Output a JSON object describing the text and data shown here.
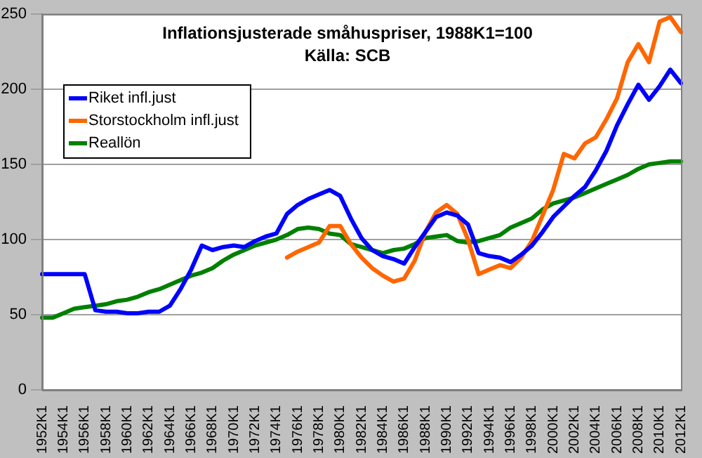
{
  "chart_data": {
    "type": "line",
    "title": "Inflationsjusterade småhuspriser, 1988K1=100",
    "subtitle": "Källa: SCB",
    "categories": [
      "1952K1",
      null,
      "1954K1",
      null,
      "1956K1",
      null,
      "1958K1",
      null,
      "1960K1",
      null,
      "1962K1",
      null,
      "1964K1",
      null,
      "1966K1",
      null,
      "1968K1",
      null,
      "1970K1",
      null,
      "1972K1",
      null,
      "1974K1",
      null,
      "1976K1",
      null,
      "1978K1",
      null,
      "1980K1",
      null,
      "1982K1",
      null,
      "1984K1",
      null,
      "1986K1",
      null,
      "1988K1",
      null,
      "1990K1",
      null,
      "1992K1",
      null,
      "1994K1",
      null,
      "1996K1",
      null,
      "1998K1",
      null,
      "2000K1",
      null,
      "2002K1",
      null,
      "2004K1",
      null,
      "2006K1",
      null,
      "2008K1",
      null,
      "2010K1",
      null,
      "2012K1"
    ],
    "ylim": [
      0,
      250
    ],
    "yticks": [
      0,
      50,
      100,
      150,
      200,
      250
    ],
    "grid": "y",
    "legend": "top left",
    "marker": "none",
    "line_style": "solid",
    "series": [
      {
        "name": "Riket infl.just",
        "color": "#0000ff",
        "values": [
          77,
          77,
          77,
          77,
          77,
          53,
          52,
          52,
          51,
          51,
          52,
          52,
          56,
          67,
          80,
          96,
          93,
          95,
          96,
          95,
          99,
          102,
          104,
          117,
          123,
          127,
          130,
          133,
          129,
          114,
          101,
          93,
          89,
          87,
          84,
          95,
          105,
          115,
          118,
          116,
          110,
          91,
          89,
          88,
          85,
          90,
          96,
          105,
          115,
          122,
          129,
          135,
          146,
          159,
          176,
          190,
          203,
          193,
          202,
          213,
          204
        ]
      },
      {
        "name": "Storstockholm infl.just",
        "color": "#ff6600",
        "values": [
          null,
          null,
          null,
          null,
          null,
          null,
          null,
          null,
          null,
          null,
          null,
          null,
          null,
          null,
          null,
          null,
          null,
          null,
          null,
          null,
          null,
          null,
          null,
          88,
          92,
          95,
          98,
          109,
          109,
          97,
          88,
          81,
          76,
          72,
          74,
          86,
          105,
          118,
          123,
          117,
          100,
          77,
          80,
          83,
          81,
          88,
          99,
          116,
          133,
          157,
          154,
          164,
          168,
          180,
          194,
          218,
          230,
          218,
          245,
          248,
          238
        ]
      },
      {
        "name": "Reallön",
        "color": "#008000",
        "values": [
          48,
          48,
          51,
          54,
          55,
          56,
          57,
          59,
          60,
          62,
          65,
          67,
          70,
          73,
          76,
          78,
          81,
          86,
          90,
          93,
          96,
          98,
          100,
          103,
          107,
          108,
          107,
          104,
          103,
          97,
          95,
          93,
          91,
          93,
          94,
          97,
          101,
          102,
          103,
          99,
          98,
          99,
          101,
          103,
          108,
          111,
          114,
          120,
          124,
          126,
          128,
          131,
          134,
          137,
          140,
          143,
          147,
          150,
          151,
          152,
          152
        ]
      }
    ]
  }
}
